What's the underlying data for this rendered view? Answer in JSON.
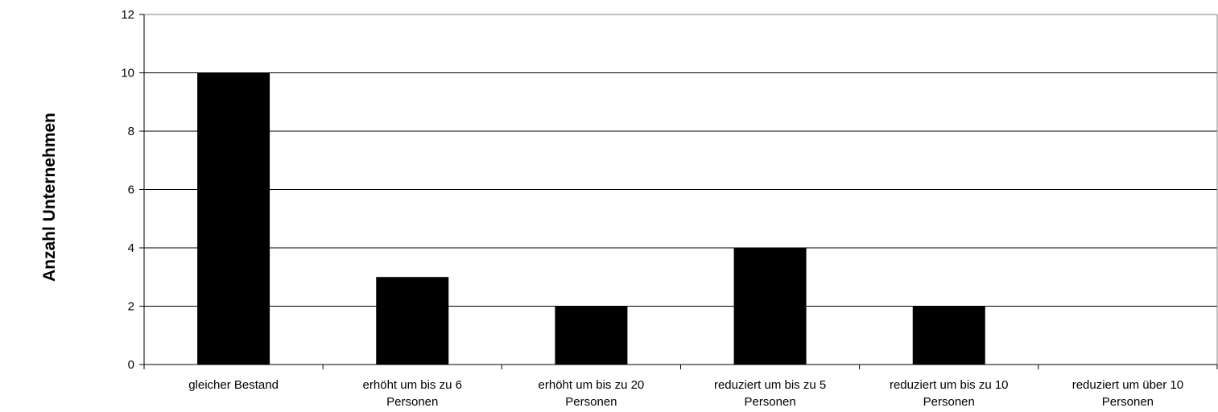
{
  "chart_data": {
    "type": "bar",
    "title": "",
    "xlabel": "",
    "ylabel": "Anzahl Unternehmen",
    "ylim": [
      0,
      12
    ],
    "yticks": [
      0,
      2,
      4,
      6,
      8,
      10,
      12
    ],
    "grid": true,
    "legend": "none",
    "bar_color": "#000000",
    "categories": [
      [
        "gleicher Bestand"
      ],
      [
        "erhöht um bis zu 6",
        "Personen"
      ],
      [
        "erhöht um bis zu 20",
        "Personen"
      ],
      [
        "reduziert um bis zu 5",
        "Personen"
      ],
      [
        "reduziert um bis zu 10",
        "Personen"
      ],
      [
        "reduziert um über 10",
        "Personen"
      ]
    ],
    "values": [
      10,
      3,
      2,
      4,
      2,
      0
    ]
  }
}
